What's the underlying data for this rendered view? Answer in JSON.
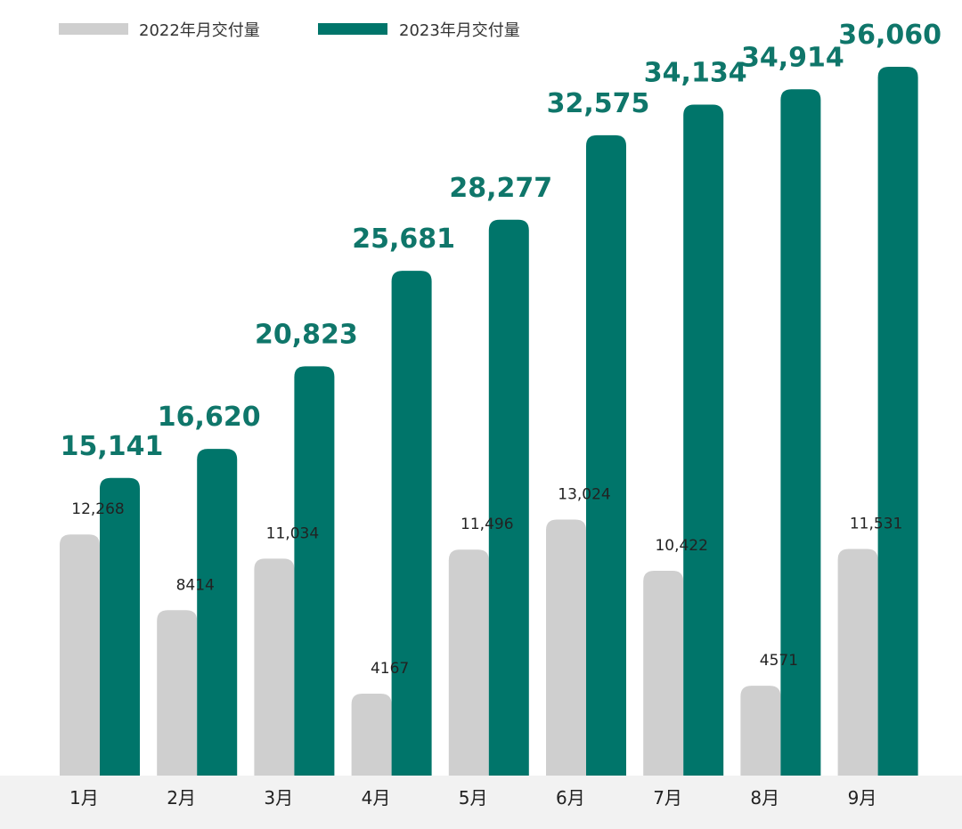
{
  "colors": {
    "series_2022": "#cfcfcf",
    "series_2023": "#00756a",
    "label_2023": "#0f766a",
    "axis_strip": "#f2f2f2"
  },
  "chart_data": {
    "type": "bar",
    "categories": [
      "1月",
      "2月",
      "3月",
      "4月",
      "5月",
      "6月",
      "7月",
      "8月",
      "9月"
    ],
    "series": [
      {
        "name": "2022年月交付量",
        "values": [
          12268,
          8414,
          11034,
          4167,
          11496,
          13024,
          10422,
          4571,
          11531
        ],
        "labels": [
          "12,268",
          "8414",
          "11,034",
          "4167",
          "11,496",
          "13,024",
          "10,422",
          "4571",
          "11,531"
        ]
      },
      {
        "name": "2023年月交付量",
        "values": [
          15141,
          16620,
          20823,
          25681,
          28277,
          32575,
          34134,
          34914,
          36060
        ],
        "labels": [
          "15,141",
          "16,620",
          "20,823",
          "25,681",
          "28,277",
          "32,575",
          "34,134",
          "34,914",
          "36,060"
        ]
      }
    ],
    "title": "",
    "xlabel": "",
    "ylabel": "",
    "ylim": [
      0,
      36060
    ],
    "grid": false,
    "legend_position": "top-left"
  }
}
